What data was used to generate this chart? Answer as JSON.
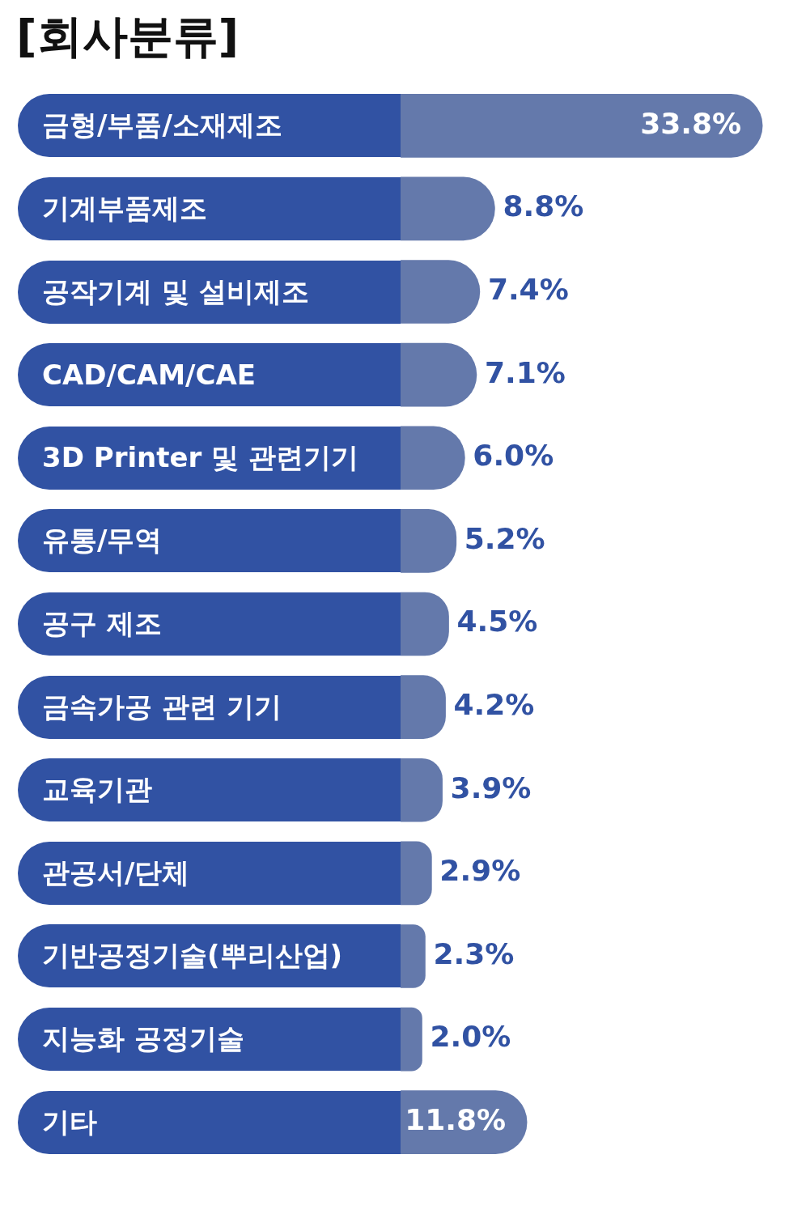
{
  "chart_data": {
    "type": "bar",
    "orientation": "horizontal",
    "title": "[회사분류]",
    "categories": [
      "금형/부품/소재제조",
      "기계부품제조",
      "공작기계 및 설비제조",
      "CAD/CAM/CAE",
      "3D Printer 및 관련기기",
      "유통/무역",
      "공구 제조",
      "금속가공 관련 기기",
      "교육기관",
      "관공서/단체",
      "기반공정기술(뿌리산업)",
      "지능화 공정기술",
      "기타"
    ],
    "values": [
      33.8,
      8.8,
      7.4,
      7.1,
      6.0,
      5.2,
      4.5,
      4.2,
      3.9,
      2.9,
      2.3,
      2.0,
      11.8
    ],
    "value_labels": [
      "33.8%",
      "8.8%",
      "7.4%",
      "7.1%",
      "6.0%",
      "5.2%",
      "4.5%",
      "4.2%",
      "3.9%",
      "2.9%",
      "2.3%",
      "2.0%",
      "11.8%"
    ],
    "color": "#6479ab"
  }
}
